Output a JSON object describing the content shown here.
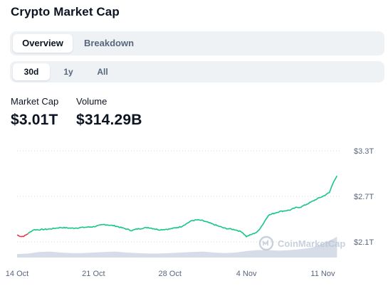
{
  "title": "Crypto Market Cap",
  "tabs": [
    {
      "label": "Overview",
      "active": true
    },
    {
      "label": "Breakdown",
      "active": false
    }
  ],
  "ranges": [
    {
      "label": "30d",
      "active": true
    },
    {
      "label": "1y",
      "active": false
    },
    {
      "label": "All",
      "active": false
    }
  ],
  "stats": {
    "market_cap_label": "Market Cap",
    "market_cap_value": "$3.01T",
    "volume_label": "Volume",
    "volume_value": "$314.29B"
  },
  "watermark": "CoinMarketCap",
  "colors": {
    "up": "#16c784",
    "down": "#ea3943",
    "volume": "#cfd6e4",
    "grid": "#cfd6e4",
    "text_muted": "#58667e"
  },
  "chart_data": {
    "type": "line",
    "title": "",
    "xlabel": "",
    "ylabel": "",
    "y_unit": "trillion USD",
    "ylim": [
      1.9,
      3.4
    ],
    "y_ticks": [
      {
        "value": 3.3,
        "label": "$3.3T"
      },
      {
        "value": 2.7,
        "label": "$2.7T"
      },
      {
        "value": 2.1,
        "label": "$2.1T"
      }
    ],
    "x_ticks": [
      "14 Oct",
      "21 Oct",
      "28 Oct",
      "4 Nov",
      "11 Nov"
    ],
    "x_tick_days": [
      0,
      7,
      14,
      21,
      28
    ],
    "x_range_days": [
      0,
      29.6
    ],
    "grid": "horizontal dotted",
    "legend": "none",
    "series": [
      {
        "role": "market_cap",
        "days": [
          0,
          0.4,
          0.7,
          1.0,
          1.5,
          2,
          3,
          4,
          5,
          6,
          7,
          8,
          9,
          10,
          10.5,
          11,
          12,
          13,
          14,
          15,
          16,
          16.5,
          17,
          18,
          19,
          20,
          20.6,
          21,
          21.5,
          22,
          22.5,
          23,
          24,
          25,
          25.5,
          26,
          27,
          27.5,
          28,
          28.6,
          29.0,
          29.3
        ],
        "values": [
          2.19,
          2.17,
          2.18,
          2.21,
          2.26,
          2.26,
          2.27,
          2.29,
          2.28,
          2.29,
          2.3,
          2.33,
          2.31,
          2.27,
          2.25,
          2.27,
          2.29,
          2.26,
          2.27,
          2.3,
          2.38,
          2.39,
          2.38,
          2.33,
          2.28,
          2.26,
          2.23,
          2.17,
          2.2,
          2.23,
          2.33,
          2.45,
          2.5,
          2.52,
          2.55,
          2.56,
          2.63,
          2.67,
          2.7,
          2.75,
          2.9,
          2.97
        ],
        "down_until_day": 1.0
      }
    ],
    "volume": {
      "days": [
        0,
        1,
        2,
        3,
        4,
        5,
        6,
        7,
        8,
        9,
        10,
        11,
        12,
        13,
        14,
        15,
        16,
        17,
        18,
        19,
        20,
        21,
        22,
        23,
        24,
        25,
        26,
        27,
        28,
        29,
        29.3
      ],
      "values": [
        0.07,
        0.08,
        0.11,
        0.12,
        0.1,
        0.09,
        0.09,
        0.1,
        0.11,
        0.12,
        0.1,
        0.09,
        0.08,
        0.08,
        0.09,
        0.1,
        0.11,
        0.12,
        0.1,
        0.09,
        0.1,
        0.13,
        0.15,
        0.15,
        0.14,
        0.15,
        0.17,
        0.2,
        0.28,
        0.38,
        0.42
      ]
    }
  }
}
